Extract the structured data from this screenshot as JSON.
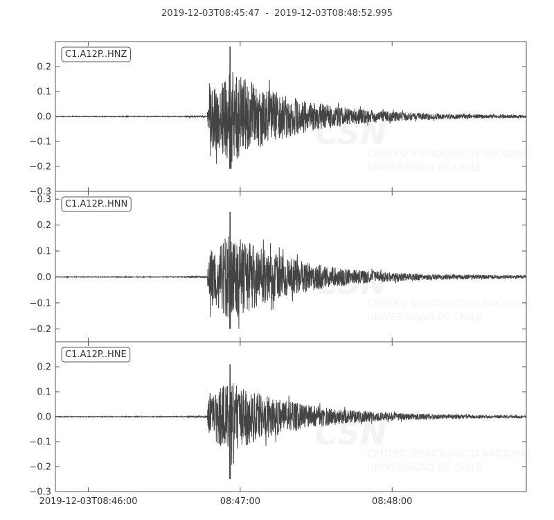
{
  "title": "2019-12-03T08:45:47  -  2019-12-03T08:48:52.995",
  "watermark": {
    "logo": "CSN",
    "line1": "CENTRO SISMOLOGICO NACIONAL",
    "line2": "UNIVERSIDAD DE CHILE"
  },
  "colors": {
    "trace": "#444444",
    "frame": "#555555",
    "watermark": "#f4f4f4"
  },
  "chart_data": {
    "type": "line",
    "x_axis": {
      "start": "2019-12-03T08:45:47",
      "end": "2019-12-03T08:48:52.995",
      "ticks": [
        "2019-12-03T08:46:00",
        "08:47:00",
        "08:48:00"
      ],
      "tick_times": [
        "2019-12-03T08:46:00",
        "2019-12-03T08:47:00",
        "2019-12-03T08:48:00"
      ]
    },
    "panels": [
      {
        "label": "C1.A12P..HNZ",
        "ylim": [
          -0.3,
          0.3
        ],
        "yticks": [
          "0.2",
          "0.1",
          "0.0",
          "−0.1",
          "−0.2",
          "−0.3"
        ],
        "ytick_values": [
          0.2,
          0.1,
          0.0,
          -0.1,
          -0.2,
          -0.3
        ],
        "onset": "2019-12-03T08:46:47",
        "max_amplitude": 0.28,
        "min_amplitude": -0.21,
        "peak_time": "2019-12-03T08:46:56"
      },
      {
        "label": "C1.A12P..HNN",
        "ylim": [
          -0.25,
          0.33
        ],
        "yticks": [
          "0.3",
          "0.2",
          "0.1",
          "0.0",
          "−0.1",
          "−0.2"
        ],
        "ytick_values": [
          0.3,
          0.2,
          0.1,
          0.0,
          -0.1,
          -0.2
        ],
        "onset": "2019-12-03T08:46:47",
        "max_amplitude": 0.25,
        "min_amplitude": -0.2,
        "peak_time": "2019-12-03T08:46:56"
      },
      {
        "label": "C1.A12P..HNE",
        "ylim": [
          -0.3,
          0.3
        ],
        "yticks": [
          "0.2",
          "0.1",
          "0.0",
          "−0.1",
          "−0.2",
          "−0.3"
        ],
        "ytick_values": [
          0.2,
          0.1,
          0.0,
          -0.1,
          -0.2,
          -0.3
        ],
        "onset": "2019-12-03T08:46:47",
        "max_amplitude": 0.21,
        "min_amplitude": -0.25,
        "peak_time": "2019-12-03T08:46:56"
      }
    ]
  }
}
